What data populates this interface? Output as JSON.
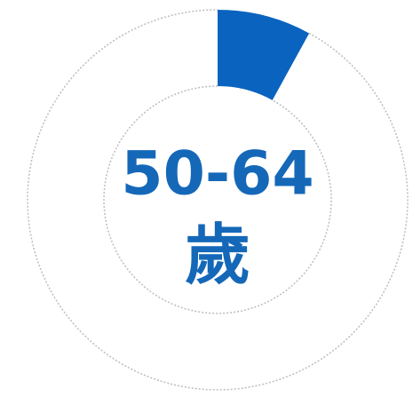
{
  "chart_data": {
    "type": "donut",
    "center_label": "50-64",
    "center_sublabel": "歲",
    "values": [
      8,
      92
    ],
    "colors": [
      "#0a63bf",
      "none"
    ]
  }
}
